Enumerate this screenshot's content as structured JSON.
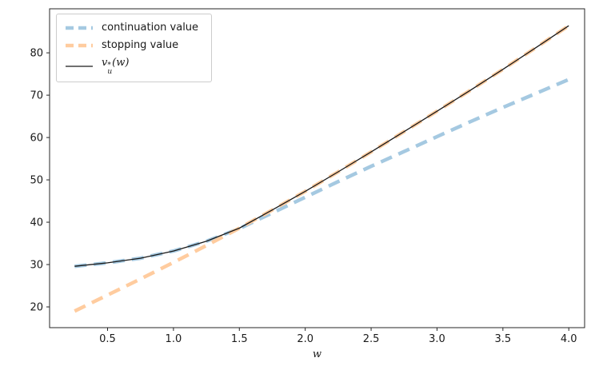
{
  "chart_data": {
    "type": "line",
    "title": "",
    "xlabel": "w",
    "ylabel": "",
    "grid": false,
    "background": "#ffffff",
    "xlim": [
      0.06,
      4.12
    ],
    "ylim": [
      15.1,
      90.4
    ],
    "xticks": {
      "values": [
        0.5,
        1.0,
        1.5,
        2.0,
        2.5,
        3.0,
        3.5,
        4.0
      ],
      "labels": [
        "0.5",
        "1.0",
        "1.5",
        "2.0",
        "2.5",
        "3.0",
        "3.5",
        "4.0"
      ]
    },
    "yticks": {
      "values": [
        20,
        30,
        40,
        50,
        60,
        70,
        80
      ],
      "labels": [
        "20",
        "30",
        "40",
        "50",
        "60",
        "70",
        "80"
      ]
    },
    "x": [
      0.25,
      0.5,
      0.75,
      1.0,
      1.25,
      1.5,
      1.75,
      2.0,
      2.25,
      2.5,
      2.75,
      3.0,
      3.25,
      3.5,
      3.75,
      4.0
    ],
    "series": [
      {
        "name": "continuation value",
        "color": "#a5c9e1",
        "dash": "15 9",
        "width": 4.5,
        "values": [
          29.6,
          30.4,
          31.5,
          33.2,
          35.5,
          38.5,
          42.2,
          45.9,
          49.6,
          53.2,
          56.7,
          60.2,
          63.7,
          67.1,
          70.4,
          73.7
        ]
      },
      {
        "name": "stopping value",
        "color": "#ffcc9f",
        "dash": "15 9",
        "width": 4.5,
        "values": [
          19.0,
          22.8,
          26.6,
          30.5,
          34.5,
          38.6,
          42.9,
          47.3,
          51.9,
          56.6,
          61.4,
          66.2,
          71.1,
          76.1,
          81.2,
          86.4
        ]
      },
      {
        "name": "v_u_star",
        "color": "#1a1a1a",
        "dash": null,
        "width": 1.3,
        "values": [
          29.6,
          30.4,
          31.5,
          33.2,
          35.5,
          38.6,
          42.9,
          47.3,
          51.9,
          56.6,
          61.4,
          66.2,
          71.1,
          76.1,
          81.2,
          86.4
        ]
      }
    ],
    "legend": {
      "position": "upper-left",
      "entries": [
        {
          "label": "continuation value",
          "math": false,
          "series": 0
        },
        {
          "label": "stopping value",
          "math": false,
          "series": 1
        },
        {
          "label": "",
          "math": true,
          "base": "v",
          "sup": "*",
          "sub": "u",
          "tail": "(w)",
          "series": 2
        }
      ]
    }
  }
}
